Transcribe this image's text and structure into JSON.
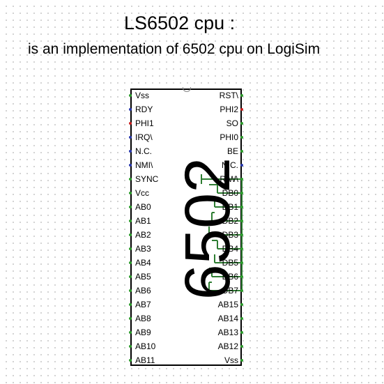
{
  "canvas": {
    "title": "LS6502 cpu :",
    "subtitle": "is an implementation of 6502 cpu on LogiSim"
  },
  "chip": {
    "label": "6502",
    "left_pins": [
      "Vss",
      "RDY",
      "PHI1",
      "IRQ\\",
      "N.C.",
      "NMI\\",
      "SYNC",
      "Vcc",
      "AB0",
      "AB1",
      "AB2",
      "AB3",
      "AB4",
      "AB5",
      "AB6",
      "AB7",
      "AB8",
      "AB9",
      "AB10",
      "AB11"
    ],
    "right_pins": [
      "RST\\",
      "PHI2",
      "SO",
      "PHI0",
      "BE",
      "N.C.",
      "R/W\\",
      "DB0",
      "DB1",
      "DB2",
      "DB3",
      "DB4",
      "DB5",
      "DB6",
      "DB7",
      "AB15",
      "AB14",
      "AB13",
      "AB12",
      "Vss"
    ]
  },
  "colors": {
    "wire": "#2e7d32",
    "pin_green": "#2e9e2e",
    "pin_blue": "#2b3bb0",
    "pin_red": "#cc2222",
    "outline": "#000000"
  }
}
